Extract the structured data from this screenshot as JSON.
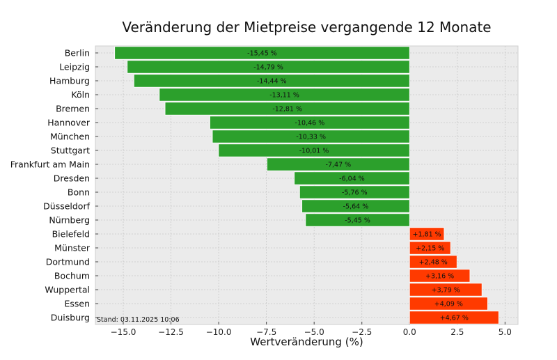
{
  "chart_data": {
    "type": "bar",
    "orientation": "horizontal",
    "title": "Veränderung der Mietpreise vergangende 12 Monate",
    "xlabel": "Wertveränderung (%)",
    "ylabel": "",
    "xlim": [
      -16.46,
      5.68
    ],
    "grid": true,
    "xticks": [
      -15.0,
      -12.5,
      -10.0,
      -7.5,
      -5.0,
      -2.5,
      0.0,
      2.5,
      5.0
    ],
    "xtick_labels": [
      "−15.0",
      "−12.5",
      "−10.0",
      "−7.5",
      "−5.0",
      "−2.5",
      "0.0",
      "2.5",
      "5.0"
    ],
    "categories": [
      "Berlin",
      "Leipzig",
      "Hamburg",
      "Köln",
      "Bremen",
      "Hannover",
      "München",
      "Stuttgart",
      "Frankfurt am Main",
      "Dresden",
      "Bonn",
      "Düsseldorf",
      "Nürnberg",
      "Bielefeld",
      "Münster",
      "Dortmund",
      "Bochum",
      "Wuppertal",
      "Essen",
      "Duisburg"
    ],
    "values": [
      -15.45,
      -14.79,
      -14.44,
      -13.11,
      -12.81,
      -10.46,
      -10.33,
      -10.01,
      -7.47,
      -6.04,
      -5.76,
      -5.64,
      -5.45,
      1.81,
      2.15,
      2.48,
      3.16,
      3.79,
      4.09,
      4.67
    ],
    "data_labels": [
      "-15,45 %",
      "-14,79 %",
      "-14,44 %",
      "-13,11 %",
      "-12,81 %",
      "-10,46 %",
      "-10,33 %",
      "-10,01 %",
      "-7,47 %",
      "-6,04 %",
      "-5,76 %",
      "-5,64 %",
      "-5,45 %",
      "+1,81 %",
      "+2,15 %",
      "+2,48 %",
      "+3,16 %",
      "+3,79 %",
      "+4,09 %",
      "+4,67 %"
    ],
    "colors": {
      "negative": "#2ca02c",
      "positive": "#ff3a00",
      "background": "#ebebeb"
    },
    "annotation": "Stand: 03.11.2025 10:06"
  }
}
